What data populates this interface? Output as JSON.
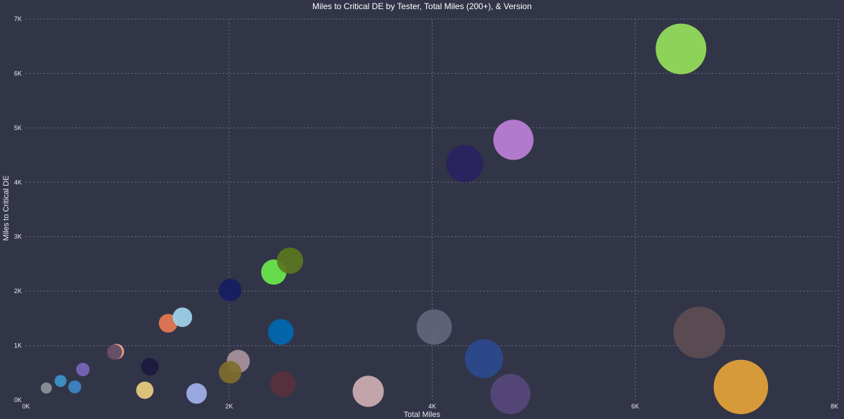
{
  "chart_data": {
    "type": "scatter",
    "title": "Miles to Critical DE by Tester, Total Miles (200+), & Version",
    "xlabel": "Total Miles",
    "ylabel": "Miles to Critical DE",
    "xlim": [
      0,
      8000
    ],
    "ylim": [
      0,
      7000
    ],
    "x_ticks": [
      0,
      2000,
      4000,
      6000,
      8000
    ],
    "x_tick_labels": [
      "0K",
      "2K",
      "4K",
      "6K",
      "8K"
    ],
    "y_ticks": [
      0,
      1000,
      2000,
      3000,
      4000,
      5000,
      6000,
      7000
    ],
    "y_tick_labels": [
      "0K",
      "1K",
      "2K",
      "3K",
      "4K",
      "5K",
      "6K",
      "7K"
    ],
    "grid": true,
    "legend": "none",
    "points": [
      {
        "x": 200,
        "y": 220,
        "color": "#8b9498"
      },
      {
        "x": 340,
        "y": 350,
        "color": "#3c96c8"
      },
      {
        "x": 480,
        "y": 240,
        "color": "#3d86c4"
      },
      {
        "x": 560,
        "y": 560,
        "color": "#7a66b8"
      },
      {
        "x": 890,
        "y": 890,
        "color": "#f2a486"
      },
      {
        "x": 870,
        "y": 880,
        "color": "#5c4a66"
      },
      {
        "x": 1170,
        "y": 180,
        "color": "#e8ce7e"
      },
      {
        "x": 1220,
        "y": 610,
        "color": "#1c1a40"
      },
      {
        "x": 1400,
        "y": 1410,
        "color": "#e57a52"
      },
      {
        "x": 1540,
        "y": 1520,
        "color": "#9ed3ea"
      },
      {
        "x": 1680,
        "y": 120,
        "color": "#a2b2ec"
      },
      {
        "x": 2010,
        "y": 2020,
        "color": "#141e62"
      },
      {
        "x": 2090,
        "y": 710,
        "color": "#a8939c"
      },
      {
        "x": 2010,
        "y": 510,
        "color": "#7e6e2e"
      },
      {
        "x": 2440,
        "y": 2350,
        "color": "#6be84c"
      },
      {
        "x": 2600,
        "y": 2560,
        "color": "#5a7620"
      },
      {
        "x": 2510,
        "y": 1250,
        "color": "#0068b2"
      },
      {
        "x": 2530,
        "y": 290,
        "color": "#58303c"
      },
      {
        "x": 3370,
        "y": 160,
        "color": "#ccaeb2"
      },
      {
        "x": 4020,
        "y": 1340,
        "color": "#62667c"
      },
      {
        "x": 4320,
        "y": 4340,
        "color": "#2a2260"
      },
      {
        "x": 4800,
        "y": 4780,
        "color": "#bc80d6"
      },
      {
        "x": 4510,
        "y": 760,
        "color": "#2c4a8e"
      },
      {
        "x": 4770,
        "y": 110,
        "color": "#56487a"
      },
      {
        "x": 6450,
        "y": 6450,
        "color": "#96e05a"
      },
      {
        "x": 6630,
        "y": 1240,
        "color": "#5c4e52"
      },
      {
        "x": 7040,
        "y": 240,
        "color": "#e4a238"
      }
    ]
  }
}
